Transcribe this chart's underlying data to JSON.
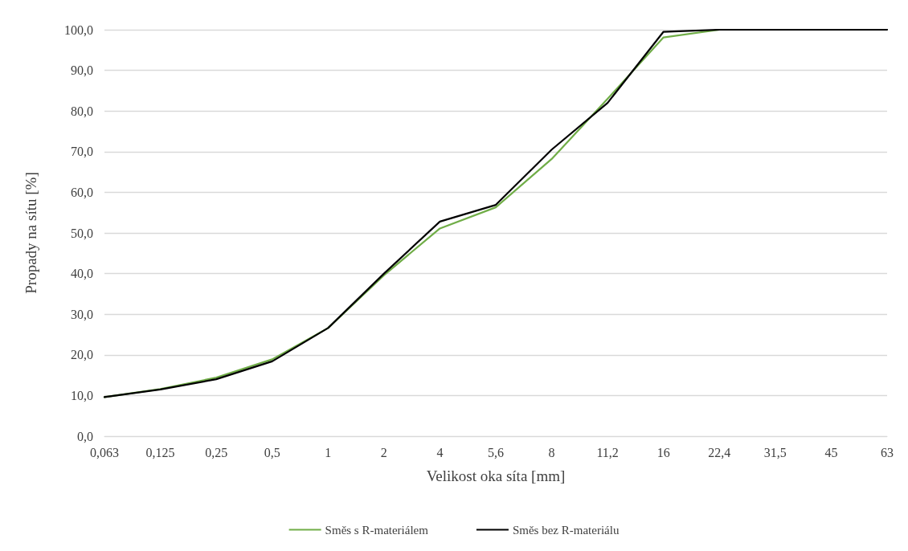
{
  "chart_data": {
    "type": "line",
    "xlabel": "Velikost oka síta [mm]",
    "ylabel": "Propady na sítu [%]",
    "categories": [
      "0,063",
      "0,125",
      "0,25",
      "0,5",
      "1",
      "2",
      "4",
      "5,6",
      "8",
      "11,2",
      "16",
      "22,4",
      "31,5",
      "45",
      "63"
    ],
    "series": [
      {
        "name": "Směs s R-materiálem",
        "color": "#70ad47",
        "values": [
          9.6,
          11.6,
          14.4,
          18.9,
          26.6,
          39.6,
          51.1,
          56.3,
          68.2,
          83.0,
          98.1,
          100,
          null,
          null,
          null
        ]
      },
      {
        "name": "Směs bez R-materiálu",
        "color": "#000000",
        "values": [
          9.6,
          11.5,
          14.0,
          18.4,
          26.6,
          40.0,
          52.8,
          56.9,
          70.5,
          82.0,
          99.5,
          100,
          100,
          100,
          100
        ]
      }
    ],
    "ylim": [
      0,
      100
    ],
    "yticks": [
      {
        "value": 0,
        "label": "0,0"
      },
      {
        "value": 10,
        "label": "10,0"
      },
      {
        "value": 20,
        "label": "20,0"
      },
      {
        "value": 30,
        "label": "30,0"
      },
      {
        "value": 40,
        "label": "40,0"
      },
      {
        "value": 50,
        "label": "50,0"
      },
      {
        "value": 60,
        "label": "60,0"
      },
      {
        "value": 70,
        "label": "70,0"
      },
      {
        "value": 80,
        "label": "80,0"
      },
      {
        "value": 90,
        "label": "90,0"
      },
      {
        "value": 100,
        "label": "100,0"
      }
    ],
    "grid": "y",
    "legend": "bottom",
    "marker": "none",
    "line_style": "solid"
  }
}
